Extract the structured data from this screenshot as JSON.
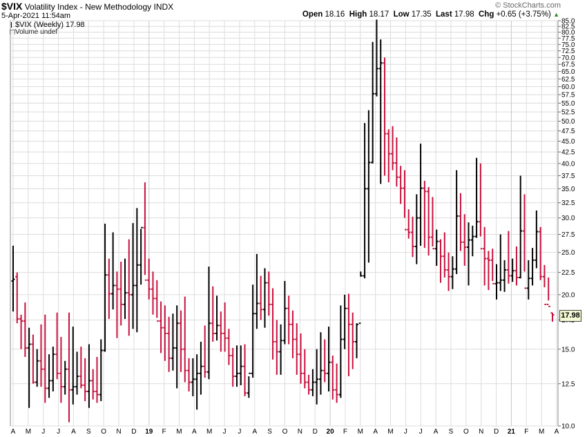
{
  "header": {
    "symbol": "$VIX",
    "name": "Volatility Index - New Methodology",
    "exchange": "INDX",
    "date": "5-Apr-2021 11:54am",
    "brand": "© StockCharts.com"
  },
  "quote": {
    "open_label": "Open",
    "open": "18.16",
    "high_label": "High",
    "high": "18.17",
    "low_label": "Low",
    "low": "17.35",
    "last_label": "Last",
    "last": "17.98",
    "chg_label": "Chg",
    "chg": "+0.65 (+3.75%)"
  },
  "legend": {
    "series": "$VIX (Weekly) 17.98",
    "volume": "Volume undef"
  },
  "price_tag": "17.98",
  "colors": {
    "up": "#000000",
    "down": "#c8103c",
    "grid": "#dcdcdc"
  },
  "chart_data": {
    "type": "ohlc",
    "scale": "log",
    "ylim": [
      10.0,
      85.0
    ],
    "y_ticks": [
      "85.0",
      "82.5",
      "80.0",
      "77.5",
      "75.0",
      "72.5",
      "70.0",
      "67.5",
      "65.0",
      "62.5",
      "60.0",
      "57.5",
      "55.0",
      "52.5",
      "50.0",
      "47.5",
      "45.0",
      "42.5",
      "40.0",
      "37.5",
      "35.0",
      "32.5",
      "30.0",
      "27.5",
      "25.0",
      "22.5",
      "20.0",
      "17.5",
      "15.0",
      "12.5",
      "10.0"
    ],
    "x_ticks": [
      "A",
      "M",
      "J",
      "J",
      "A",
      "S",
      "O",
      "N",
      "D",
      "19",
      "F",
      "M",
      "A",
      "M",
      "J",
      "J",
      "A",
      "S",
      "O",
      "N",
      "D",
      "20",
      "F",
      "M",
      "A",
      "M",
      "J",
      "J",
      "A",
      "S",
      "O",
      "N",
      "D",
      "21",
      "F",
      "M",
      "A"
    ],
    "bars": [
      [
        21.5,
        25.9,
        18.3,
        21.7
      ],
      [
        22.0,
        22.5,
        17.2,
        17.6
      ],
      [
        17.6,
        18.0,
        15.0,
        17.4
      ],
      [
        17.4,
        19.2,
        14.4,
        15.1
      ],
      [
        15.1,
        16.8,
        11.0,
        15.4
      ],
      [
        15.4,
        16.2,
        12.5,
        12.6
      ],
      [
        12.6,
        15.0,
        12.3,
        14.1
      ],
      [
        14.1,
        17.1,
        12.3,
        13.5
      ],
      [
        13.5,
        18.0,
        11.3,
        12.2
      ],
      [
        12.2,
        14.6,
        11.6,
        12.7
      ],
      [
        12.7,
        15.2,
        12.0,
        14.6
      ],
      [
        14.6,
        18.2,
        12.8,
        13.2
      ],
      [
        13.2,
        16.0,
        11.3,
        12.3
      ],
      [
        12.3,
        14.1,
        11.8,
        13.5
      ],
      [
        13.5,
        18.2,
        10.2,
        12.1
      ],
      [
        12.1,
        16.9,
        11.2,
        12.3
      ],
      [
        12.3,
        14.8,
        11.8,
        13.0
      ],
      [
        13.0,
        15.2,
        12.2,
        12.4
      ],
      [
        12.4,
        14.3,
        11.4,
        12.0
      ],
      [
        12.0,
        15.4,
        11.0,
        12.7
      ],
      [
        12.7,
        13.5,
        11.5,
        12.0
      ],
      [
        12.0,
        14.4,
        11.3,
        11.8
      ],
      [
        11.8,
        15.8,
        11.4,
        14.9
      ],
      [
        14.9,
        29.1,
        14.8,
        22.2
      ],
      [
        22.2,
        24.2,
        17.6,
        20.1
      ],
      [
        20.1,
        27.8,
        18.5,
        21.0
      ],
      [
        21.0,
        22.6,
        15.9,
        20.6
      ],
      [
        20.6,
        23.8,
        17.0,
        19.0
      ],
      [
        19.0,
        24.2,
        17.6,
        20.2
      ],
      [
        20.2,
        26.8,
        16.1,
        20.0
      ],
      [
        20.0,
        29.2,
        16.7,
        21.0
      ],
      [
        21.0,
        31.6,
        16.4,
        23.4
      ],
      [
        23.4,
        28.3,
        21.1,
        28.5
      ],
      [
        28.5,
        36.2,
        22.2,
        21.6
      ],
      [
        21.6,
        24.2,
        19.5,
        20.6
      ],
      [
        20.6,
        22.6,
        18.0,
        19.6
      ],
      [
        19.6,
        21.6,
        17.7,
        17.4
      ],
      [
        17.4,
        19.3,
        14.7,
        16.8
      ],
      [
        16.8,
        18.9,
        14.1,
        16.3
      ],
      [
        16.3,
        17.8,
        13.3,
        14.3
      ],
      [
        14.3,
        18.1,
        13.4,
        15.1
      ],
      [
        15.1,
        18.9,
        12.2,
        17.2
      ],
      [
        17.2,
        18.4,
        13.3,
        15.0
      ],
      [
        15.0,
        19.8,
        12.6,
        13.4
      ],
      [
        13.4,
        14.3,
        12.0,
        12.6
      ],
      [
        12.6,
        14.3,
        11.7,
        12.8
      ],
      [
        12.8,
        14.6,
        10.9,
        13.2
      ],
      [
        13.2,
        15.6,
        11.8,
        13.7
      ],
      [
        13.7,
        17.0,
        12.9,
        13.3
      ],
      [
        13.3,
        23.2,
        12.8,
        17.2
      ],
      [
        17.2,
        20.9,
        15.6,
        16.3
      ],
      [
        16.3,
        19.9,
        15.7,
        17.0
      ],
      [
        17.0,
        18.3,
        14.8,
        16.3
      ],
      [
        16.3,
        19.2,
        14.8,
        15.9
      ],
      [
        15.9,
        16.7,
        13.8,
        14.5
      ],
      [
        14.5,
        15.1,
        12.3,
        13.0
      ],
      [
        13.0,
        15.3,
        12.3,
        13.2
      ],
      [
        13.2,
        15.3,
        12.4,
        13.7
      ],
      [
        13.7,
        15.4,
        11.7,
        11.9
      ],
      [
        11.9,
        13.0,
        11.6,
        13.2
      ],
      [
        13.2,
        21.1,
        12.9,
        18.1
      ],
      [
        18.1,
        24.8,
        16.7,
        19.1
      ],
      [
        19.1,
        22.1,
        17.5,
        18.5
      ],
      [
        18.5,
        23.0,
        16.8,
        21.3
      ],
      [
        21.3,
        22.6,
        17.9,
        19.0
      ],
      [
        19.0,
        20.7,
        14.2,
        15.6
      ],
      [
        15.6,
        17.5,
        13.1,
        14.8
      ],
      [
        14.8,
        17.1,
        13.1,
        15.7
      ],
      [
        15.7,
        21.5,
        15.4,
        18.6
      ],
      [
        18.6,
        19.9,
        15.4,
        17.1
      ],
      [
        17.1,
        18.4,
        14.3,
        15.8
      ],
      [
        15.8,
        17.2,
        13.1,
        14.6
      ],
      [
        14.6,
        16.3,
        12.5,
        13.2
      ],
      [
        13.2,
        15.0,
        12.2,
        12.6
      ],
      [
        12.6,
        13.1,
        11.8,
        12.1
      ],
      [
        12.1,
        13.5,
        11.7,
        12.6
      ],
      [
        12.6,
        15.0,
        11.2,
        12.8
      ],
      [
        12.8,
        16.4,
        11.8,
        13.4
      ],
      [
        13.4,
        15.8,
        12.6,
        13.2
      ],
      [
        13.2,
        16.9,
        12.0,
        14.0
      ],
      [
        14.0,
        14.5,
        11.5,
        12.1
      ],
      [
        12.1,
        13.9,
        11.3,
        11.8
      ],
      [
        11.8,
        18.9,
        11.6,
        15.8
      ],
      [
        15.8,
        20.0,
        15.0,
        18.6
      ],
      [
        18.6,
        20.1,
        13.0,
        17.1
      ],
      [
        17.1,
        18.2,
        13.5,
        15.6
      ],
      [
        15.6,
        17.2,
        14.3,
        17.1
      ],
      [
        17.2,
        22.6,
        22.0,
        22.1
      ],
      [
        22.1,
        49.5,
        21.8,
        35.0
      ],
      [
        35.0,
        53.0,
        23.7,
        40.2
      ],
      [
        40.2,
        76.0,
        40.0,
        57.8
      ],
      [
        57.8,
        85.5,
        57.0,
        66.0
      ],
      [
        66.0,
        77.0,
        35.9,
        68.0
      ],
      [
        68.0,
        70.0,
        37.5,
        46.8
      ],
      [
        46.8,
        47.9,
        36.2,
        42.1
      ],
      [
        42.1,
        48.7,
        38.6,
        40.1
      ],
      [
        40.1,
        45.9,
        35.4,
        37.2
      ],
      [
        37.2,
        39.5,
        32.3,
        35.1
      ],
      [
        35.1,
        38.6,
        30.0,
        28.2
      ],
      [
        28.2,
        31.4,
        26.9,
        27.8
      ],
      [
        27.8,
        30.2,
        24.4,
        25.8
      ],
      [
        25.8,
        34.0,
        23.5,
        30.0
      ],
      [
        30.0,
        44.4,
        25.9,
        35.1
      ],
      [
        35.1,
        36.5,
        25.6,
        34.5
      ],
      [
        34.5,
        35.3,
        24.6,
        27.1
      ],
      [
        27.1,
        33.5,
        25.8,
        25.5
      ],
      [
        25.5,
        28.2,
        23.3,
        26.5
      ],
      [
        26.5,
        26.8,
        21.3,
        24.5
      ],
      [
        24.5,
        27.8,
        21.9,
        22.8
      ],
      [
        22.8,
        25.0,
        20.4,
        22.0
      ],
      [
        22.0,
        24.5,
        20.6,
        22.9
      ],
      [
        22.9,
        38.6,
        22.3,
        30.3
      ],
      [
        30.3,
        34.2,
        25.2,
        26.4
      ],
      [
        26.4,
        30.6,
        23.3,
        25.7
      ],
      [
        25.7,
        29.3,
        21.0,
        26.7
      ],
      [
        26.7,
        28.8,
        24.5,
        27.2
      ],
      [
        27.2,
        41.2,
        27.0,
        29.4
      ],
      [
        29.4,
        40.0,
        27.2,
        25.5
      ],
      [
        25.5,
        28.6,
        21.0,
        24.2
      ],
      [
        24.2,
        25.2,
        20.5,
        24.0
      ],
      [
        24.0,
        25.5,
        21.5,
        21.2
      ],
      [
        21.2,
        23.5,
        19.5,
        21.3
      ],
      [
        21.3,
        27.5,
        20.4,
        21.6
      ],
      [
        21.6,
        24.0,
        20.3,
        22.8
      ],
      [
        22.8,
        28.0,
        21.2,
        22.1
      ],
      [
        22.1,
        24.2,
        21.4,
        22.7
      ],
      [
        22.7,
        25.8,
        21.0,
        21.9
      ],
      [
        21.9,
        37.5,
        21.8,
        28.0
      ],
      [
        28.0,
        34.0,
        22.6,
        20.7
      ],
      [
        20.7,
        24.0,
        19.5,
        21.8
      ],
      [
        21.8,
        25.6,
        21.0,
        24.0
      ],
      [
        24.0,
        31.2,
        23.0,
        27.9
      ],
      [
        27.9,
        28.6,
        21.6,
        22.0
      ],
      [
        22.0,
        23.4,
        20.8,
        19.0
      ],
      [
        19.0,
        21.9,
        19.4,
        18.8
      ],
      [
        18.16,
        18.17,
        17.35,
        17.98
      ]
    ]
  }
}
